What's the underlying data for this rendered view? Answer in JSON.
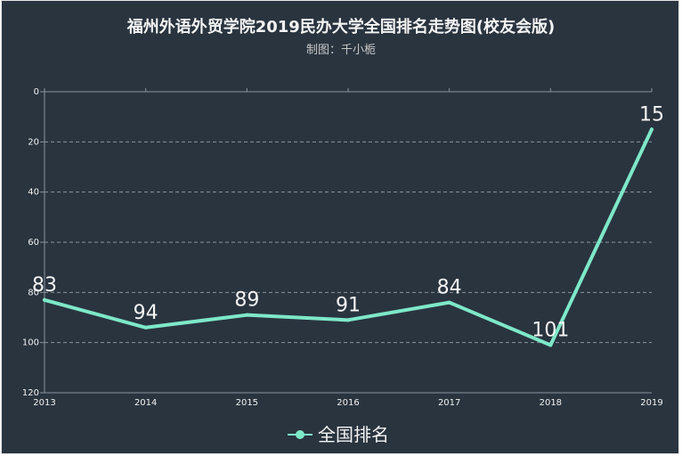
{
  "header": {
    "title": "福州外语外贸学院2019民办大学全国排名走势图(校友会版)",
    "subtitle": "制图：千小栀"
  },
  "colors": {
    "background": "#29343f",
    "line": "#7ee8c9",
    "grid": "#8a939c",
    "text": "#f2f2f2"
  },
  "chart_data": {
    "type": "line",
    "title": "福州外语外贸学院2019民办大学全国排名走势图(校友会版)",
    "subtitle": "制图：千小栀",
    "xlabel": "",
    "ylabel": "",
    "x": [
      "2013",
      "2014",
      "2015",
      "2016",
      "2017",
      "2018",
      "2019"
    ],
    "series": [
      {
        "name": "全国排名",
        "values": [
          83,
          94,
          89,
          91,
          84,
          101,
          15
        ]
      }
    ],
    "ylim": [
      0,
      120
    ],
    "y_inverted": true,
    "y_ticks": [
      0,
      20,
      40,
      60,
      80,
      100,
      120
    ],
    "grid": true,
    "data_labels": true,
    "legend_position": "bottom"
  }
}
